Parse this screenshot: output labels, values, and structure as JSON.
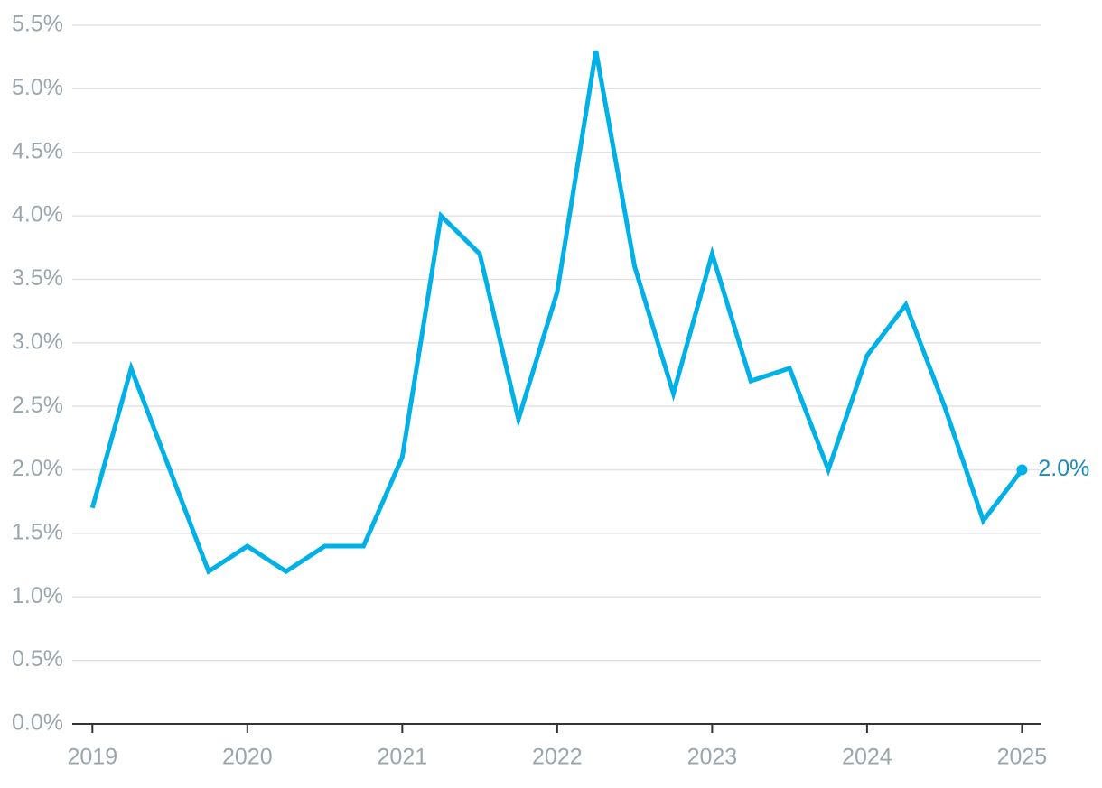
{
  "chart_data": {
    "type": "line",
    "x": [
      2019,
      2019.25,
      2019.5,
      2019.75,
      2020,
      2020.25,
      2020.5,
      2020.75,
      2021,
      2021.25,
      2021.5,
      2021.75,
      2022,
      2022.25,
      2022.5,
      2022.75,
      2023,
      2023.25,
      2023.5,
      2023.75,
      2024,
      2024.25,
      2024.5,
      2024.75,
      2025
    ],
    "series": [
      {
        "color": "#00b1e8",
        "values": [
          1.7,
          2.8,
          2.0,
          1.2,
          1.4,
          1.2,
          1.4,
          1.4,
          2.1,
          4.0,
          3.7,
          2.4,
          3.4,
          5.3,
          3.6,
          2.6,
          3.7,
          2.7,
          2.8,
          2.0,
          2.9,
          3.3,
          2.5,
          1.6,
          2.0
        ],
        "value_labels": [
          null,
          null,
          null,
          null,
          null,
          null,
          null,
          null,
          null,
          null,
          null,
          null,
          null,
          null,
          null,
          null,
          null,
          null,
          null,
          null,
          null,
          null,
          null,
          null,
          "2.0%"
        ]
      }
    ],
    "xlim": [
      2018.87,
      2025.12
    ],
    "xticks": [
      2019,
      2020,
      2021,
      2022,
      2023,
      2024,
      2025
    ],
    "ylim": [
      0,
      5.5
    ],
    "yticks": [
      {
        "value": 0,
        "label": "0.0%"
      },
      {
        "value": 0.5,
        "label": "0.5%"
      },
      {
        "value": 1,
        "label": "1.0%"
      },
      {
        "value": 1.5,
        "label": "1.5%"
      },
      {
        "value": 2,
        "label": "2.0%"
      },
      {
        "value": 2.5,
        "label": "2.5%"
      },
      {
        "value": 3,
        "label": "3.0%"
      },
      {
        "value": 3.5,
        "label": "3.5%"
      },
      {
        "value": 4,
        "label": "4.0%"
      },
      {
        "value": 4.5,
        "label": "4.5%"
      },
      {
        "value": 5,
        "label": "5.0%"
      },
      {
        "value": 5.5,
        "label": "5.5%"
      }
    ],
    "grid": true,
    "label_color": "#1a8bb8"
  }
}
